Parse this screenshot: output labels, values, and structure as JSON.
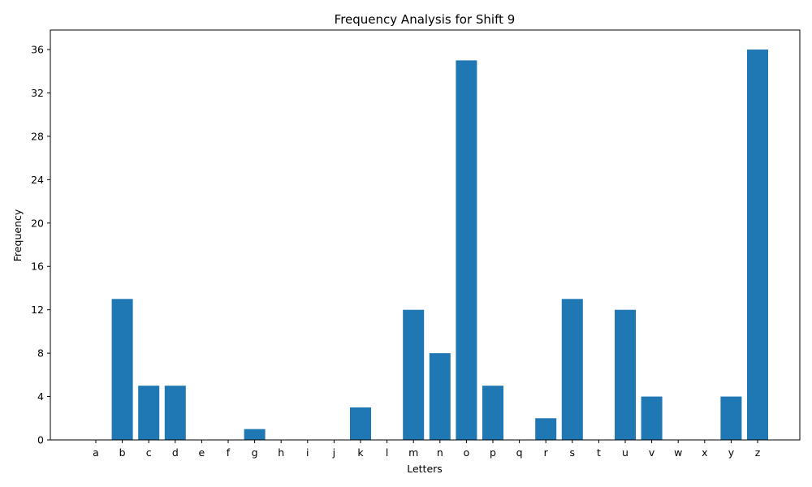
{
  "chart_data": {
    "type": "bar",
    "title": "Frequency Analysis for Shift 9",
    "xlabel": "Letters",
    "ylabel": "Frequency",
    "categories": [
      "a",
      "b",
      "c",
      "d",
      "e",
      "f",
      "g",
      "h",
      "i",
      "j",
      "k",
      "l",
      "m",
      "n",
      "o",
      "p",
      "q",
      "r",
      "s",
      "t",
      "u",
      "v",
      "w",
      "x",
      "y",
      "z"
    ],
    "values": [
      0,
      13,
      5,
      5,
      0,
      0,
      1,
      0,
      0,
      0,
      3,
      0,
      12,
      8,
      35,
      5,
      0,
      2,
      13,
      0,
      12,
      4,
      0,
      0,
      4,
      36
    ],
    "ylim": [
      0,
      37.8
    ],
    "yticks": [
      0,
      4,
      8,
      12,
      16,
      20,
      24,
      28,
      32,
      36
    ],
    "grid": false,
    "colors": {
      "bar": "#1f77b4"
    }
  }
}
